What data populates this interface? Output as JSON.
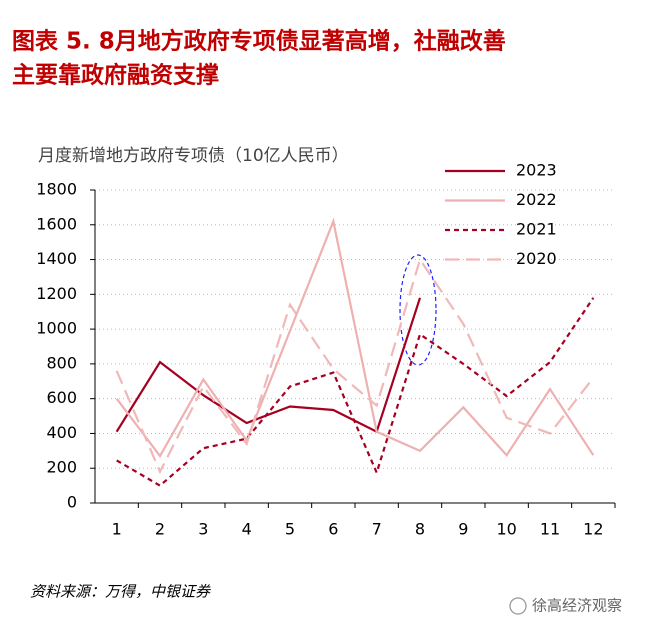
{
  "chart_data": {
    "type": "line",
    "title": [
      "图表 5.  8月地方政府专项债显著高增，社融改善",
      "主要靠政府融资支撑"
    ],
    "y_label": "月度新增地方政府专项债（10亿人民币）",
    "categories": [
      "1",
      "2",
      "3",
      "4",
      "5",
      "6",
      "7",
      "8",
      "9",
      "10",
      "11",
      "12"
    ],
    "series": [
      {
        "name": "2023",
        "color": "#a50021",
        "dash": "solid",
        "values": [
          410,
          810,
          620,
          460,
          555,
          535,
          410,
          1180,
          null,
          null,
          null,
          null
        ]
      },
      {
        "name": "2022",
        "color": "#eeb0b0",
        "dash": "solid",
        "values": [
          600,
          270,
          710,
          360,
          990,
          1620,
          410,
          300,
          550,
          275,
          655,
          275
        ]
      },
      {
        "name": "2021",
        "color": "#a50021",
        "dash": "short",
        "values": [
          245,
          100,
          315,
          370,
          670,
          750,
          175,
          970,
          800,
          615,
          810,
          1180
        ]
      },
      {
        "name": "2020",
        "color": "#f0b8b8",
        "dash": "long",
        "values": [
          760,
          180,
          670,
          340,
          1140,
          770,
          560,
          1400,
          1030,
          490,
          400,
          720
        ]
      }
    ],
    "ylim": [
      0,
      1800
    ],
    "yticks": [
      0,
      200,
      400,
      600,
      800,
      1000,
      1200,
      1400,
      1600,
      1800
    ],
    "grid": true,
    "legend": "top-right",
    "source": "资料来源：万得，中银证券",
    "watermark": "徐高经济观察"
  }
}
